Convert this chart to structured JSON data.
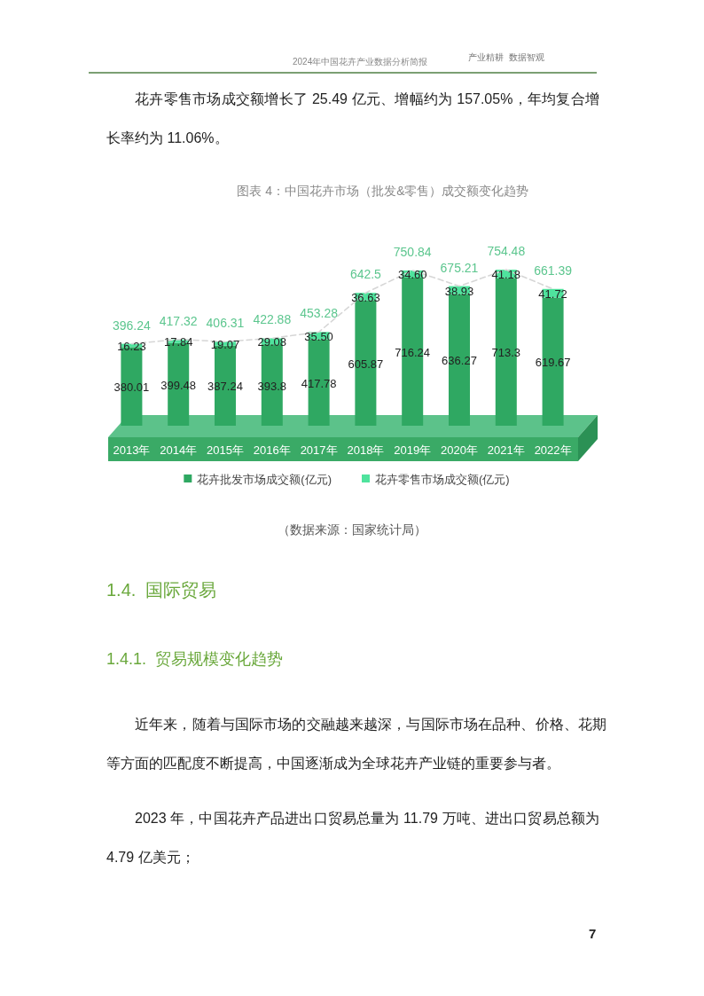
{
  "chart_data": {
    "type": "bar",
    "stacked": true,
    "title": "图表 4：中国花卉市场（批发&零售）成交额变化趋势",
    "categories": [
      "2013年",
      "2014年",
      "2015年",
      "2016年",
      "2017年",
      "2018年",
      "2019年",
      "2020年",
      "2021年",
      "2022年"
    ],
    "series": [
      {
        "name": "花卉批发市场成交额(亿元)",
        "color": "#2fa862",
        "values": [
          380.01,
          399.48,
          387.24,
          393.8,
          417.78,
          605.87,
          716.24,
          636.27,
          713.3,
          619.67
        ],
        "value_labels": [
          "380.01",
          "399.48",
          "387.24",
          "393.8",
          "417.78",
          "605.87",
          "716.24",
          "636.27",
          "713.3",
          "619.67"
        ]
      },
      {
        "name": "花卉零售市场成交额(亿元)",
        "color": "#4fe39d",
        "values": [
          16.23,
          17.84,
          19.07,
          29.08,
          35.5,
          36.63,
          34.6,
          38.93,
          41.18,
          41.72
        ],
        "value_labels": [
          "16.23",
          "17.84",
          "19.07",
          "29.08",
          "35.50",
          "36.63",
          "34.60",
          "38.93",
          "41.18",
          "41.72"
        ]
      },
      {
        "type": "line",
        "color": "#d6d6d6",
        "line_style": "dashed",
        "values": [
          396.24,
          417.32,
          406.31,
          422.88,
          453.28,
          642.5,
          750.84,
          675.21,
          754.48,
          661.39
        ],
        "value_labels": [
          "396.24",
          "417.32",
          "406.31",
          "422.88",
          "453.28",
          "642.5",
          "750.84",
          "675.21",
          "754.48",
          "661.39"
        ]
      }
    ],
    "legend": "bottom",
    "tick_labels": "x",
    "annotations": [
      "2024年中国花卉产业数据分析简报",
      "产业精耕  数据智观",
      "花卉零售市场成交额增长了 25.49 亿元、增幅约为 157.05%，年均复合增长率约为 11.06%。",
      "（数据来源：国家统计局）",
      "1.4.  国际贸易",
      "1.4.1.  贸易规模变化趋势",
      "近年来，随着与国际市场的交融越来越深，与国际市场在品种、价格、花期等方面的匹配度不断提高，中国逐渐成为全球花卉产业链的重要参与者。",
      "2023 年，中国花卉产品进出口贸易总量为 11.79 万吨、进出口贸易总额为 4.79 亿美元；",
      "7"
    ]
  }
}
